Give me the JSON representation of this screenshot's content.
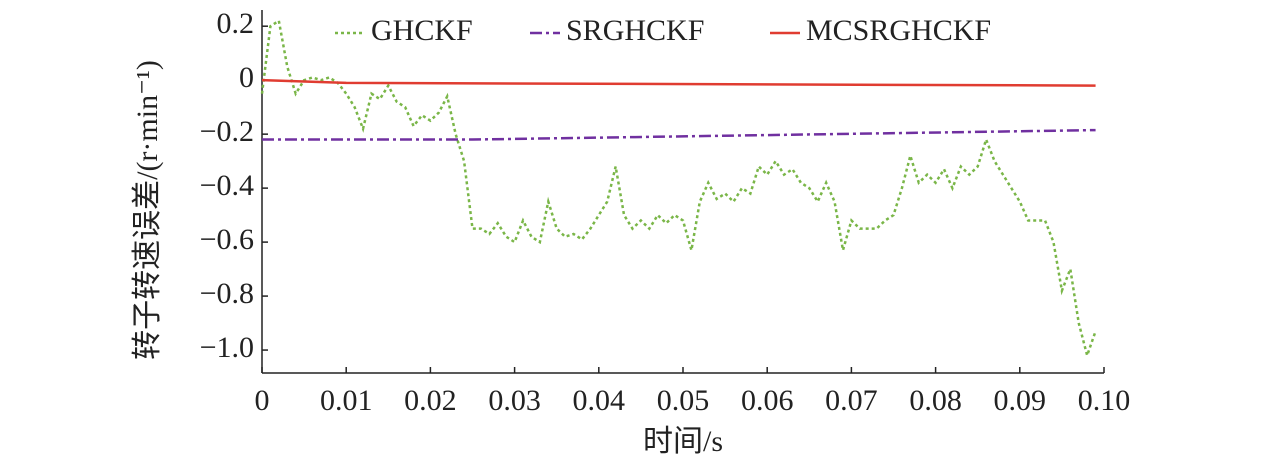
{
  "chart_data": {
    "type": "line",
    "xlabel": "时间/s",
    "ylabel": "转子转速误差/(r·min⁻¹)",
    "xlim": [
      0,
      0.1
    ],
    "ylim": [
      -1.085,
      0.26
    ],
    "xticks": [
      0,
      0.01,
      0.02,
      0.03,
      0.04,
      0.05,
      0.06,
      0.07,
      0.08,
      0.09,
      {
        "value": 0.1,
        "label": "0.10"
      }
    ],
    "yticks": [
      0.2,
      0,
      {
        "value": -0.2,
        "label": "−0.2"
      },
      {
        "value": -0.4,
        "label": "−0.4"
      },
      {
        "value": -0.6,
        "label": "−0.6"
      },
      {
        "value": -0.8,
        "label": "−0.8"
      },
      {
        "value": -1.0,
        "label": "−1.0"
      }
    ],
    "series": [
      {
        "name": "GHCKF",
        "color": "#7ab648",
        "dash": "3,3",
        "x": [
          0,
          0.001,
          0.002,
          0.003,
          0.004,
          0.005,
          0.006,
          0.007,
          0.008,
          0.009,
          0.01,
          0.011,
          0.012,
          0.013,
          0.014,
          0.015,
          0.016,
          0.017,
          0.018,
          0.019,
          0.02,
          0.021,
          0.022,
          0.023,
          0.024,
          0.025,
          0.026,
          0.027,
          0.028,
          0.029,
          0.03,
          0.031,
          0.032,
          0.033,
          0.034,
          0.035,
          0.036,
          0.037,
          0.038,
          0.039,
          0.04,
          0.041,
          0.042,
          0.043,
          0.044,
          0.045,
          0.046,
          0.047,
          0.048,
          0.049,
          0.05,
          0.051,
          0.052,
          0.053,
          0.054,
          0.055,
          0.056,
          0.057,
          0.058,
          0.059,
          0.06,
          0.061,
          0.062,
          0.063,
          0.064,
          0.065,
          0.066,
          0.067,
          0.068,
          0.069,
          0.07,
          0.071,
          0.072,
          0.073,
          0.074,
          0.075,
          0.076,
          0.077,
          0.078,
          0.079,
          0.08,
          0.081,
          0.082,
          0.083,
          0.084,
          0.085,
          0.086,
          0.087,
          0.088,
          0.089,
          0.09,
          0.091,
          0.092,
          0.093,
          0.094,
          0.095,
          0.096,
          0.097,
          0.098,
          0.099
        ],
        "values": [
          -0.05,
          0.2,
          0.22,
          0.05,
          -0.05,
          0.0,
          0.01,
          0.0,
          0.01,
          -0.01,
          -0.05,
          -0.1,
          -0.18,
          -0.05,
          -0.07,
          -0.02,
          -0.08,
          -0.1,
          -0.17,
          -0.13,
          -0.15,
          -0.12,
          -0.06,
          -0.2,
          -0.3,
          -0.55,
          -0.55,
          -0.57,
          -0.53,
          -0.58,
          -0.6,
          -0.52,
          -0.58,
          -0.6,
          -0.45,
          -0.55,
          -0.58,
          -0.57,
          -0.59,
          -0.55,
          -0.5,
          -0.45,
          -0.32,
          -0.5,
          -0.55,
          -0.52,
          -0.55,
          -0.5,
          -0.53,
          -0.5,
          -0.52,
          -0.63,
          -0.45,
          -0.38,
          -0.44,
          -0.42,
          -0.45,
          -0.4,
          -0.42,
          -0.32,
          -0.35,
          -0.3,
          -0.35,
          -0.33,
          -0.38,
          -0.4,
          -0.45,
          -0.38,
          -0.45,
          -0.63,
          -0.52,
          -0.55,
          -0.55,
          -0.55,
          -0.52,
          -0.5,
          -0.4,
          -0.28,
          -0.38,
          -0.35,
          -0.38,
          -0.33,
          -0.4,
          -0.32,
          -0.35,
          -0.32,
          -0.22,
          -0.3,
          -0.35,
          -0.4,
          -0.45,
          -0.52,
          -0.52,
          -0.52,
          -0.6,
          -0.78,
          -0.7,
          -0.9,
          -1.02,
          -0.93
        ]
      },
      {
        "name": "SRGHCKF",
        "color": "#7030a0",
        "dash": "12,4,3,4",
        "x": [
          0,
          0.025,
          0.099
        ],
        "values": [
          -0.22,
          -0.22,
          -0.185
        ]
      },
      {
        "name": "MCSRGHCKF",
        "color": "#e03c31",
        "dash": "",
        "x": [
          0,
          0.01,
          0.099
        ],
        "values": [
          0.0,
          -0.01,
          -0.02
        ]
      }
    ]
  }
}
